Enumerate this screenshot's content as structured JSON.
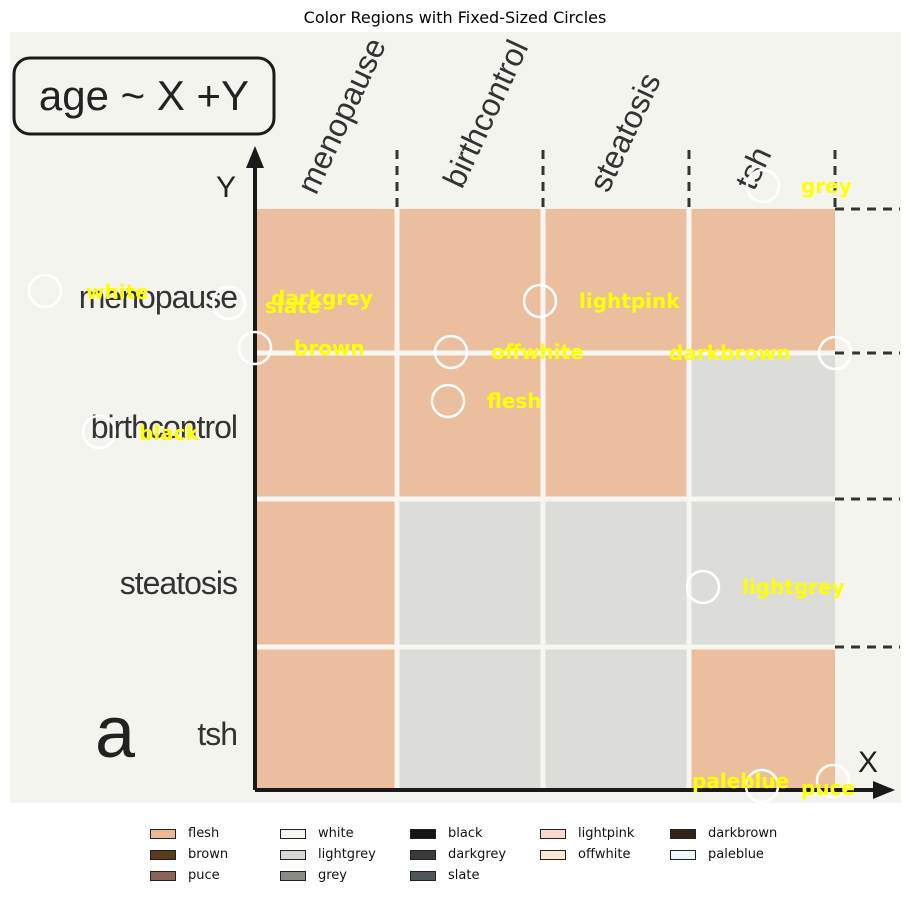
{
  "title": "Color Regions with Fixed-Sized Circles",
  "chart_data": {
    "type": "heatmap",
    "formula_box": "age ~ X +Y",
    "panel_letter": "a",
    "axes": {
      "x_label": "X",
      "y_label": "Y"
    },
    "column_labels": [
      "menopause",
      "birthcontrol",
      "steatosis",
      "tsh"
    ],
    "row_labels": [
      "menopause",
      "birthcontrol",
      "steatosis",
      "tsh"
    ],
    "cell_colors": [
      [
        "#ebbf9e",
        "#ebbf9e",
        "#ebbf9e",
        "#ebbf9e"
      ],
      [
        "#ebbf9e",
        "#ebbf9e",
        "#ebbf9e",
        "#dcddd8"
      ],
      [
        "#ebbf9e",
        "#dcddd8",
        "#dcddd8",
        "#dcddd8"
      ],
      [
        "#ebbf9e",
        "#dcddd8",
        "#dcddd8",
        "#ebbf9e"
      ]
    ],
    "annotations": [
      {
        "label": "white"
      },
      {
        "label": "darkgrey"
      },
      {
        "label": "slate"
      },
      {
        "label": "brown"
      },
      {
        "label": "lightpink"
      },
      {
        "label": "offwhite"
      },
      {
        "label": "darkbrown"
      },
      {
        "label": "flesh"
      },
      {
        "label": "black"
      },
      {
        "label": "lightgrey"
      },
      {
        "label": "grey"
      },
      {
        "label": "paleblue"
      },
      {
        "label": "puce"
      }
    ],
    "annotation_text_color": "#ffff00",
    "circle_color": "#ffffff",
    "legend": [
      {
        "label": "flesh",
        "color": "#ecb896"
      },
      {
        "label": "white",
        "color": "#f6f6f2"
      },
      {
        "label": "black",
        "color": "#151515"
      },
      {
        "label": "lightpink",
        "color": "#f8d8cf"
      },
      {
        "label": "darkbrown",
        "color": "#33241a"
      },
      {
        "label": "brown",
        "color": "#5c3a1e"
      },
      {
        "label": "lightgrey",
        "color": "#d8d8d4"
      },
      {
        "label": "darkgrey",
        "color": "#3a3a3a"
      },
      {
        "label": "offwhite",
        "color": "#fbe7d2"
      },
      {
        "label": "paleblue",
        "color": "#eefafc"
      },
      {
        "label": "puce",
        "color": "#8c6457"
      },
      {
        "label": "grey",
        "color": "#8a8a86"
      },
      {
        "label": "slate",
        "color": "#4d575b"
      }
    ]
  }
}
